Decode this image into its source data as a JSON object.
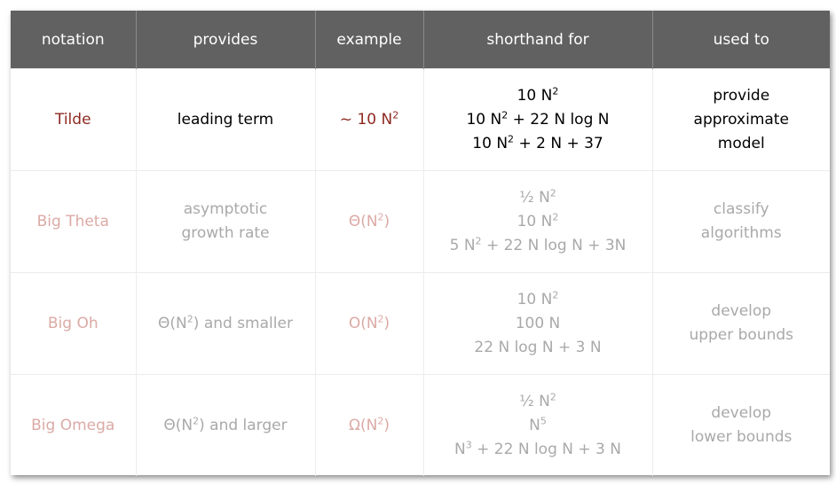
{
  "headers": [
    "notation",
    "provides",
    "example",
    "shorthand for",
    "used to"
  ],
  "rows": [
    {
      "notation": "Tilde",
      "provides": [
        "leading term"
      ],
      "example": "~ 10 N²",
      "shorthand": [
        "10 N²",
        "10 N² + 22 N log N",
        "10 N² + 2 N + 37"
      ],
      "used_to": [
        "provide",
        "approximate",
        "model"
      ]
    },
    {
      "notation": "Big Theta",
      "provides": [
        "asymptotic",
        "growth rate"
      ],
      "example": "Θ(N²)",
      "shorthand": [
        "½ N²",
        "10 N²",
        "5 N² + 22 N log N + 3N"
      ],
      "used_to": [
        "classify",
        "algorithms"
      ]
    },
    {
      "notation": "Big Oh",
      "provides": [
        "Θ(N²) and smaller"
      ],
      "example": "O(N²)",
      "shorthand": [
        "10 N²",
        "100 N",
        "22 N log N + 3 N"
      ],
      "used_to": [
        "develop",
        "upper bounds"
      ]
    },
    {
      "notation": "Big Omega",
      "provides": [
        "Θ(N²) and larger"
      ],
      "example": "Ω(N²)",
      "shorthand": [
        "½ N²",
        "N⁵",
        "N³ + 22 N log N + 3 N"
      ],
      "used_to": [
        "develop",
        "lower bounds"
      ]
    }
  ],
  "colors": {
    "header_bg": "#616161",
    "highlight_red": "#8e2a22",
    "faded_red": "#dbaaa5",
    "faded_gray": "#a9a9a9"
  }
}
